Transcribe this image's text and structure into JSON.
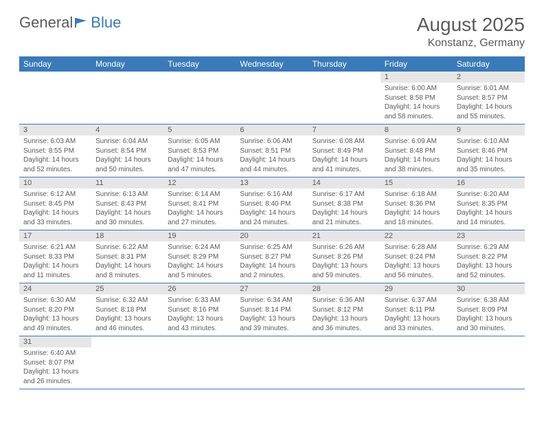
{
  "brand": {
    "part1": "General",
    "part2": "Blue"
  },
  "title": "August 2025",
  "location": "Konstanz, Germany",
  "colors": {
    "header_bg": "#3a7ab8",
    "header_fg": "#ffffff",
    "daynum_bg": "#e6e6e6",
    "text": "#5a5a5a",
    "rule": "#3a7ab8",
    "page_bg": "#ffffff"
  },
  "weekdays": [
    "Sunday",
    "Monday",
    "Tuesday",
    "Wednesday",
    "Thursday",
    "Friday",
    "Saturday"
  ],
  "weeks": [
    [
      null,
      null,
      null,
      null,
      null,
      {
        "n": "1",
        "sunrise": "6:00 AM",
        "sunset": "8:58 PM",
        "daylight": "14 hours and 58 minutes."
      },
      {
        "n": "2",
        "sunrise": "6:01 AM",
        "sunset": "8:57 PM",
        "daylight": "14 hours and 55 minutes."
      }
    ],
    [
      {
        "n": "3",
        "sunrise": "6:03 AM",
        "sunset": "8:55 PM",
        "daylight": "14 hours and 52 minutes."
      },
      {
        "n": "4",
        "sunrise": "6:04 AM",
        "sunset": "8:54 PM",
        "daylight": "14 hours and 50 minutes."
      },
      {
        "n": "5",
        "sunrise": "6:05 AM",
        "sunset": "8:53 PM",
        "daylight": "14 hours and 47 minutes."
      },
      {
        "n": "6",
        "sunrise": "6:06 AM",
        "sunset": "8:51 PM",
        "daylight": "14 hours and 44 minutes."
      },
      {
        "n": "7",
        "sunrise": "6:08 AM",
        "sunset": "8:49 PM",
        "daylight": "14 hours and 41 minutes."
      },
      {
        "n": "8",
        "sunrise": "6:09 AM",
        "sunset": "8:48 PM",
        "daylight": "14 hours and 38 minutes."
      },
      {
        "n": "9",
        "sunrise": "6:10 AM",
        "sunset": "8:46 PM",
        "daylight": "14 hours and 35 minutes."
      }
    ],
    [
      {
        "n": "10",
        "sunrise": "6:12 AM",
        "sunset": "8:45 PM",
        "daylight": "14 hours and 33 minutes."
      },
      {
        "n": "11",
        "sunrise": "6:13 AM",
        "sunset": "8:43 PM",
        "daylight": "14 hours and 30 minutes."
      },
      {
        "n": "12",
        "sunrise": "6:14 AM",
        "sunset": "8:41 PM",
        "daylight": "14 hours and 27 minutes."
      },
      {
        "n": "13",
        "sunrise": "6:16 AM",
        "sunset": "8:40 PM",
        "daylight": "14 hours and 24 minutes."
      },
      {
        "n": "14",
        "sunrise": "6:17 AM",
        "sunset": "8:38 PM",
        "daylight": "14 hours and 21 minutes."
      },
      {
        "n": "15",
        "sunrise": "6:18 AM",
        "sunset": "8:36 PM",
        "daylight": "14 hours and 18 minutes."
      },
      {
        "n": "16",
        "sunrise": "6:20 AM",
        "sunset": "8:35 PM",
        "daylight": "14 hours and 14 minutes."
      }
    ],
    [
      {
        "n": "17",
        "sunrise": "6:21 AM",
        "sunset": "8:33 PM",
        "daylight": "14 hours and 11 minutes."
      },
      {
        "n": "18",
        "sunrise": "6:22 AM",
        "sunset": "8:31 PM",
        "daylight": "14 hours and 8 minutes."
      },
      {
        "n": "19",
        "sunrise": "6:24 AM",
        "sunset": "8:29 PM",
        "daylight": "14 hours and 5 minutes."
      },
      {
        "n": "20",
        "sunrise": "6:25 AM",
        "sunset": "8:27 PM",
        "daylight": "14 hours and 2 minutes."
      },
      {
        "n": "21",
        "sunrise": "6:26 AM",
        "sunset": "8:26 PM",
        "daylight": "13 hours and 59 minutes."
      },
      {
        "n": "22",
        "sunrise": "6:28 AM",
        "sunset": "8:24 PM",
        "daylight": "13 hours and 56 minutes."
      },
      {
        "n": "23",
        "sunrise": "6:29 AM",
        "sunset": "8:22 PM",
        "daylight": "13 hours and 52 minutes."
      }
    ],
    [
      {
        "n": "24",
        "sunrise": "6:30 AM",
        "sunset": "8:20 PM",
        "daylight": "13 hours and 49 minutes."
      },
      {
        "n": "25",
        "sunrise": "6:32 AM",
        "sunset": "8:18 PM",
        "daylight": "13 hours and 46 minutes."
      },
      {
        "n": "26",
        "sunrise": "6:33 AM",
        "sunset": "8:16 PM",
        "daylight": "13 hours and 43 minutes."
      },
      {
        "n": "27",
        "sunrise": "6:34 AM",
        "sunset": "8:14 PM",
        "daylight": "13 hours and 39 minutes."
      },
      {
        "n": "28",
        "sunrise": "6:36 AM",
        "sunset": "8:12 PM",
        "daylight": "13 hours and 36 minutes."
      },
      {
        "n": "29",
        "sunrise": "6:37 AM",
        "sunset": "8:11 PM",
        "daylight": "13 hours and 33 minutes."
      },
      {
        "n": "30",
        "sunrise": "6:38 AM",
        "sunset": "8:09 PM",
        "daylight": "13 hours and 30 minutes."
      }
    ],
    [
      {
        "n": "31",
        "sunrise": "6:40 AM",
        "sunset": "8:07 PM",
        "daylight": "13 hours and 26 minutes."
      },
      null,
      null,
      null,
      null,
      null,
      null
    ]
  ],
  "labels": {
    "sunrise": "Sunrise: ",
    "sunset": "Sunset: ",
    "daylight": "Daylight: "
  }
}
